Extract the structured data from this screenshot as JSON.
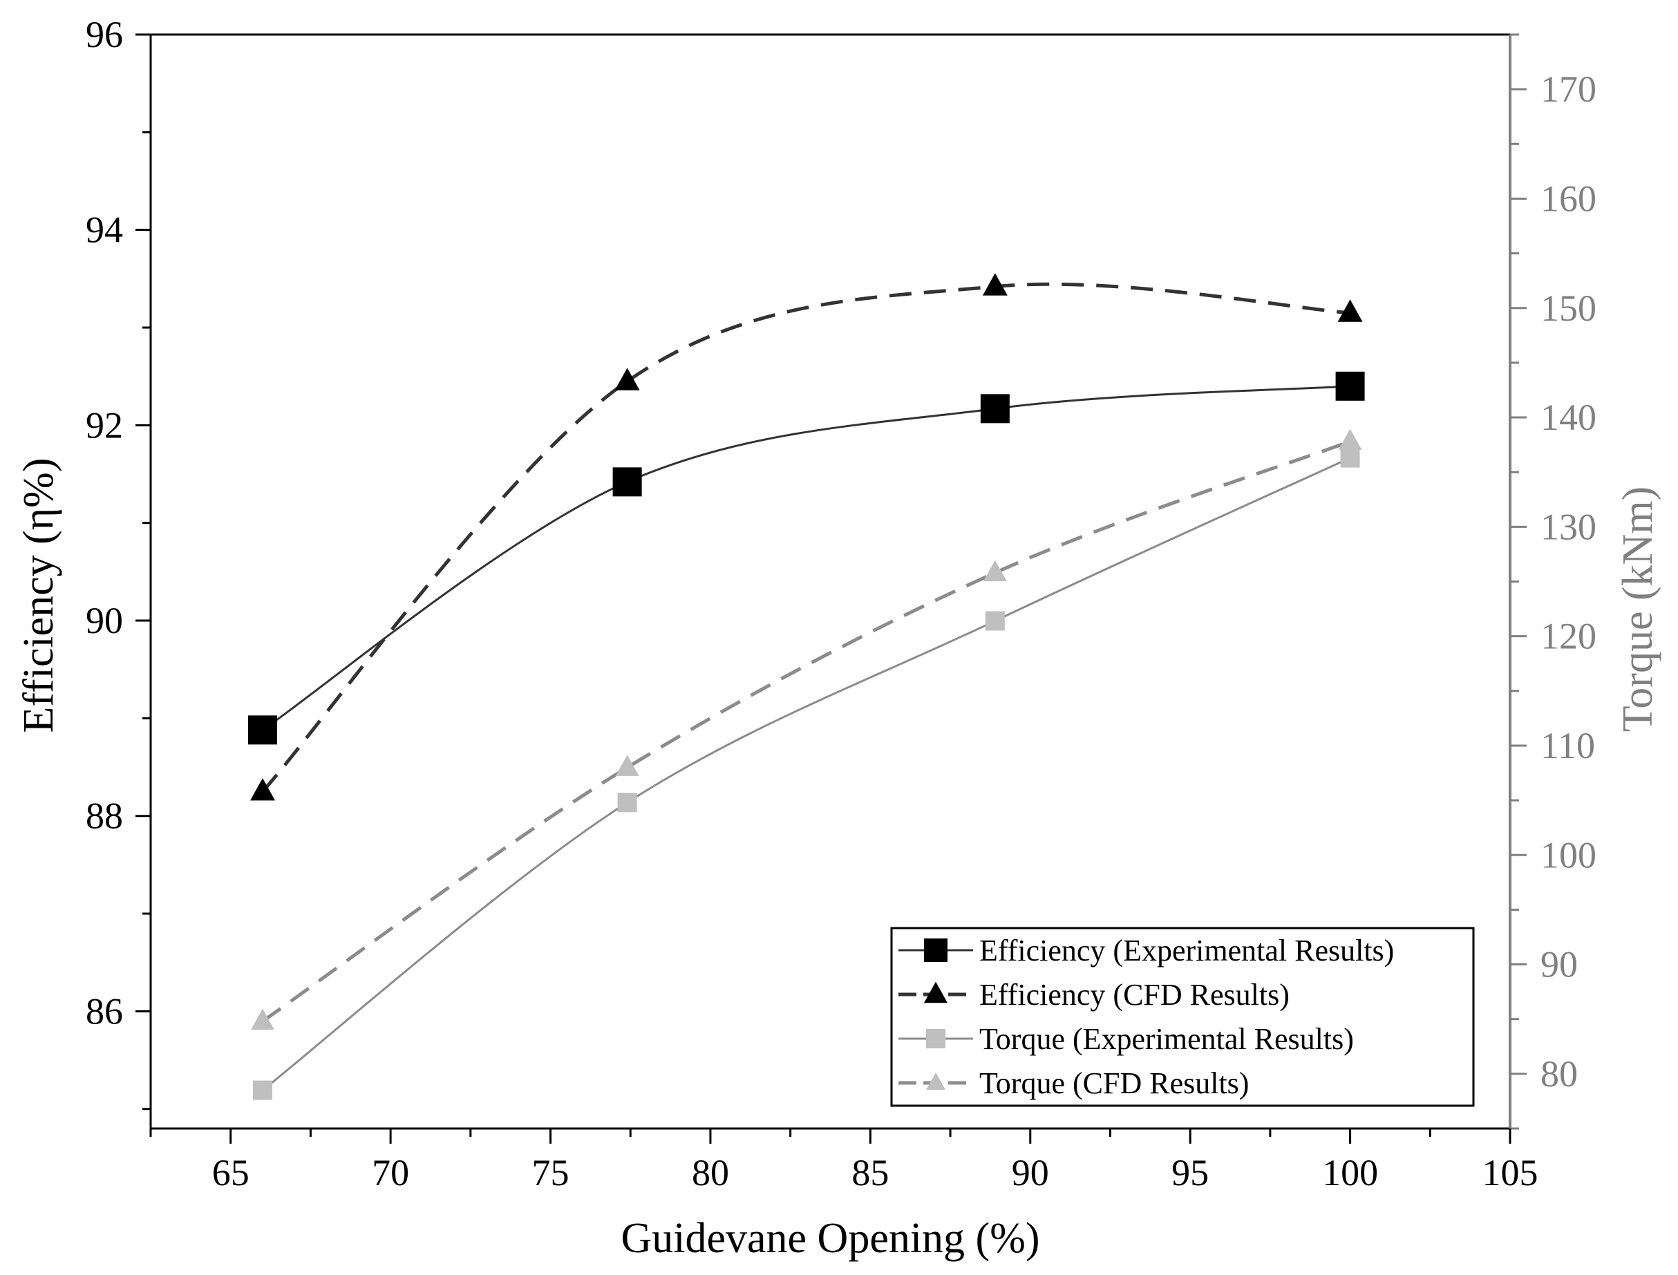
{
  "chart_data": {
    "type": "line",
    "xlabel": "Guidevane Opening (%)",
    "ylabel_left": "Efficiency (η%)",
    "ylabel_right": "Torque (kNm)",
    "xlim": [
      62.5,
      105
    ],
    "ylim_left": [
      84.8,
      96
    ],
    "ylim_right": [
      75,
      175
    ],
    "x_ticks": [
      65,
      70,
      75,
      80,
      85,
      90,
      95,
      100,
      105
    ],
    "y_ticks_left": [
      86,
      88,
      90,
      92,
      94,
      96
    ],
    "y_ticks_right": [
      80,
      90,
      100,
      110,
      120,
      130,
      140,
      150,
      160,
      170
    ],
    "grid": false,
    "legend_position": "bottom-right",
    "colors": {
      "efficiency": "#000000",
      "efficiency_line": "#333333",
      "torque_marker": "#bfbfbf",
      "torque_line": "#8c8c8c",
      "right_axis": "#808080"
    },
    "series": [
      {
        "name": "Efficiency (Experimental Results)",
        "axis": "left",
        "marker": "square",
        "line": "solid",
        "x": [
          66,
          77.4,
          88.9,
          100
        ],
        "values": [
          88.88,
          91.42,
          92.17,
          92.4
        ]
      },
      {
        "name": "Efficiency (CFD Results)",
        "axis": "left",
        "marker": "triangle",
        "line": "dashed",
        "x": [
          66,
          77.4,
          88.9,
          100
        ],
        "values": [
          88.25,
          92.45,
          93.42,
          93.15
        ]
      },
      {
        "name": "Torque (Experimental Results)",
        "axis": "right",
        "marker": "square",
        "line": "solid",
        "x": [
          66,
          77.4,
          88.9,
          100
        ],
        "values": [
          78.5,
          104.8,
          121.4,
          136.3
        ]
      },
      {
        "name": "Torque (CFD Results)",
        "axis": "right",
        "marker": "triangle",
        "line": "dashed",
        "x": [
          66,
          77.4,
          88.9,
          100
        ],
        "values": [
          84.8,
          108,
          125.8,
          137.8
        ]
      }
    ]
  }
}
